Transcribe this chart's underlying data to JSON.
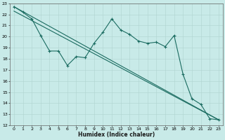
{
  "xlabel": "Humidex (Indice chaleur)",
  "ylabel": "",
  "bg_color": "#c8eae8",
  "grid_color": "#afd4d0",
  "line_color": "#1a6b60",
  "xlim": [
    -0.5,
    23.5
  ],
  "ylim": [
    12,
    23
  ],
  "xticks": [
    0,
    1,
    2,
    3,
    4,
    5,
    6,
    7,
    8,
    9,
    10,
    11,
    12,
    13,
    14,
    15,
    16,
    17,
    18,
    19,
    20,
    21,
    22,
    23
  ],
  "yticks": [
    12,
    13,
    14,
    15,
    16,
    17,
    18,
    19,
    20,
    21,
    22,
    23
  ],
  "line1_x": [
    0,
    1,
    2,
    3,
    4,
    5,
    6,
    7,
    8,
    9,
    10,
    11,
    12,
    13,
    14,
    15,
    16,
    17,
    18,
    19,
    20,
    21,
    22,
    23
  ],
  "line1_y": [
    22.7,
    22.2,
    21.6,
    20.1,
    18.7,
    18.7,
    17.4,
    18.2,
    18.1,
    19.4,
    20.4,
    21.6,
    20.6,
    20.2,
    19.6,
    19.4,
    19.5,
    19.1,
    20.1,
    16.6,
    14.4,
    13.9,
    12.6,
    12.5
  ],
  "line2_x": [
    0,
    23
  ],
  "line2_y": [
    22.7,
    12.5
  ],
  "line3_x": [
    0,
    23
  ],
  "line3_y": [
    22.7,
    12.5
  ]
}
